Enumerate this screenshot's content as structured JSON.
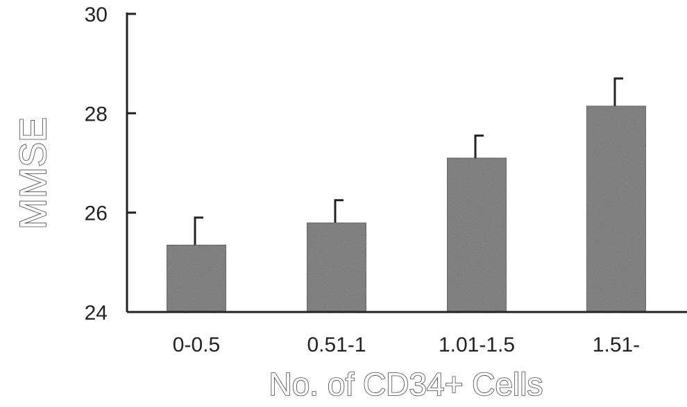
{
  "chart_data": {
    "type": "bar",
    "categories": [
      "0-0.5",
      "0.51-1",
      "1.01-1.5",
      "1.51-"
    ],
    "values": [
      25.35,
      25.8,
      27.1,
      28.15
    ],
    "error_upper": [
      0.55,
      0.45,
      0.45,
      0.55
    ],
    "xlabel": "No. of CD34+ Cells",
    "ylabel": "MMSE",
    "ylim": [
      24,
      30
    ],
    "yticks": [
      24,
      26,
      28,
      30
    ],
    "grid": false,
    "legend": "none",
    "bar_color": "#6e6e6e",
    "axis_color": "#222222"
  }
}
